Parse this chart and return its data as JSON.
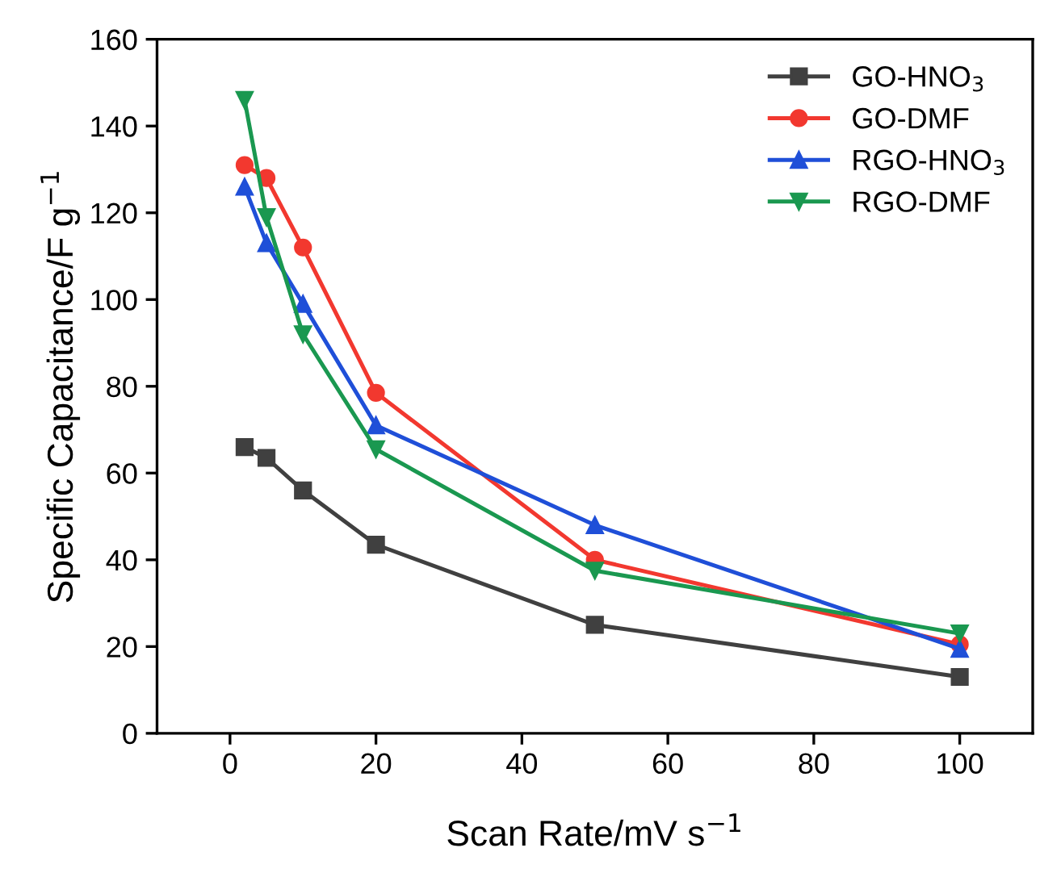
{
  "chart_data": {
    "type": "line",
    "xlabel": "Scan Rate/mV s$^{−1}$",
    "ylabel": "Specific Capacitance/F g$^{−1}$",
    "x": [
      2,
      5,
      10,
      20,
      50,
      100
    ],
    "xlim": [
      -10,
      110
    ],
    "xticks": [
      0,
      20,
      40,
      60,
      80,
      100
    ],
    "ylim": [
      0,
      160
    ],
    "yticks": [
      0,
      20,
      40,
      60,
      80,
      100,
      120,
      140,
      160
    ],
    "grid": false,
    "legend": "top right",
    "series": [
      {
        "name": "GO-HNO$_{3}$",
        "color": "#404040",
        "marker": "square",
        "values": [
          66,
          63.5,
          56,
          43.5,
          25,
          13
        ]
      },
      {
        "name": "GO-DMF",
        "color": "#f2382f",
        "marker": "circle",
        "values": [
          131,
          128,
          112,
          78.5,
          40,
          20.5
        ]
      },
      {
        "name": "RGO-HNO$_{3}$",
        "color": "#1f4fd8",
        "marker": "triangle",
        "values": [
          126,
          113,
          99,
          71,
          48,
          19.5
        ]
      },
      {
        "name": "RGO-DMF",
        "color": "#1a9850",
        "marker": "triangle_down",
        "values": [
          146,
          119,
          92,
          65.5,
          37.5,
          23
        ]
      }
    ]
  }
}
